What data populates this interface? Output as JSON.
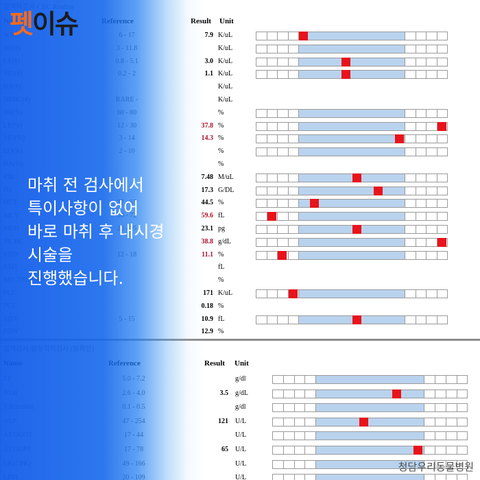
{
  "brand": {
    "logo_part1": "펫",
    "logo_part2": "이슈"
  },
  "caption": {
    "lines": [
      "마취 전 검사에서",
      "특이사항이 없어",
      "바로 마취 후 내시경",
      "시술을",
      "진행했습니다."
    ]
  },
  "watermark": "청담우리동물병원",
  "colors": {
    "marker": "#e8131b",
    "normal_band": "#b9d3ee",
    "abnormal_text": "#b0102a",
    "overlay_blue": "#1668ec",
    "logo_orange": "#f46a1e"
  },
  "cbc": {
    "title": "혈액학검사-CBC Routine",
    "headers": {
      "name": "Name",
      "reference": "Reference",
      "result": "Result",
      "unit": "Unit"
    },
    "rows": [
      {
        "name": "WBC",
        "ref": "6 - 17",
        "result": "7.9",
        "unit": "K/uL",
        "abnormal": false,
        "marker_pos": 4,
        "show_bar": true
      },
      {
        "name": "NE(#)",
        "ref": "3 - 11.8",
        "result": "",
        "unit": "K/uL",
        "abnormal": false,
        "marker_pos": null,
        "show_bar": true
      },
      {
        "name": "LY(#)",
        "ref": "0.8 - 5.1",
        "result": "3.0",
        "unit": "K/uL",
        "abnormal": false,
        "marker_pos": 8,
        "show_bar": true
      },
      {
        "name": "MO(#)",
        "ref": "0.2 - 2",
        "result": "1.1",
        "unit": "K/uL",
        "abnormal": false,
        "marker_pos": 8,
        "show_bar": true
      },
      {
        "name": "BA(#)",
        "ref": "",
        "result": "",
        "unit": "K/uL",
        "abnormal": false,
        "marker_pos": null,
        "show_bar": false
      },
      {
        "name": "NRBC(#)",
        "ref": "RARE -",
        "result": "",
        "unit": "K/uL",
        "abnormal": false,
        "marker_pos": null,
        "show_bar": false
      },
      {
        "name": "NE(%)",
        "ref": "60 - 80",
        "result": "",
        "unit": "%",
        "abnormal": false,
        "marker_pos": null,
        "show_bar": true
      },
      {
        "name": "LY(%)",
        "ref": "12 - 30",
        "result": "37.8",
        "unit": "%",
        "abnormal": true,
        "marker_pos": 17,
        "show_bar": true
      },
      {
        "name": "MO(%)",
        "ref": "3 - 14",
        "result": "14.3",
        "unit": "%",
        "abnormal": true,
        "marker_pos": 13,
        "show_bar": true
      },
      {
        "name": "EO(%)",
        "ref": "2 - 10",
        "result": "",
        "unit": "%",
        "abnormal": false,
        "marker_pos": null,
        "show_bar": true
      },
      {
        "name": "BA(%)",
        "ref": "",
        "result": "",
        "unit": "%",
        "abnormal": false,
        "marker_pos": null,
        "show_bar": false
      },
      {
        "name": "RBC",
        "ref": "",
        "result": "7.48",
        "unit": "M/uL",
        "abnormal": false,
        "marker_pos": 9,
        "show_bar": true
      },
      {
        "name": "Hb",
        "ref": "",
        "result": "17.3",
        "unit": "G/DL",
        "abnormal": false,
        "marker_pos": 11,
        "show_bar": true
      },
      {
        "name": "HCT",
        "ref": "37 - 55",
        "result": "44.5",
        "unit": "%",
        "abnormal": false,
        "marker_pos": 5,
        "show_bar": true
      },
      {
        "name": "MCV",
        "ref": "60 - 72",
        "result": "59.6",
        "unit": "fL",
        "abnormal": true,
        "marker_pos": 1,
        "show_bar": true
      },
      {
        "name": "MCH",
        "ref": "20 - 25",
        "result": "23.1",
        "unit": "pg",
        "abnormal": false,
        "marker_pos": 9,
        "show_bar": true
      },
      {
        "name": "MCHC",
        "ref": "",
        "result": "38.8",
        "unit": "g/dL",
        "abnormal": true,
        "marker_pos": 17,
        "show_bar": true
      },
      {
        "name": "RDW",
        "ref": "12 - 18",
        "result": "11.1",
        "unit": "%",
        "abnormal": true,
        "marker_pos": 2,
        "show_bar": true
      },
      {
        "name": "RSD",
        "ref": "",
        "result": "",
        "unit": "fL",
        "abnormal": false,
        "marker_pos": null,
        "show_bar": false
      },
      {
        "name": "RECTICS(%)",
        "ref": "",
        "result": "",
        "unit": "%",
        "abnormal": false,
        "marker_pos": null,
        "show_bar": false
      },
      {
        "name": "PLT",
        "ref": "",
        "result": "171",
        "unit": "K/uL",
        "abnormal": false,
        "marker_pos": 3,
        "show_bar": true
      },
      {
        "name": "PCT",
        "ref": "",
        "result": "0.18",
        "unit": "%",
        "abnormal": false,
        "marker_pos": null,
        "show_bar": false
      },
      {
        "name": "MPV",
        "ref": "5 - 15",
        "result": "10.9",
        "unit": "fL",
        "abnormal": false,
        "marker_pos": 9,
        "show_bar": true
      },
      {
        "name": "PDW",
        "ref": "",
        "result": "12.9",
        "unit": "%",
        "abnormal": false,
        "marker_pos": null,
        "show_bar": false
      }
    ]
  },
  "chem": {
    "title": "혈액검사-혈청화학검사 (항목당)",
    "headers": {
      "name": "Name",
      "reference": "Reference",
      "result": "Result",
      "unit": "Unit"
    },
    "rows": [
      {
        "name": "TP",
        "ref": "5.0 - 7.2",
        "result": "",
        "unit": "g/dl",
        "abnormal": false,
        "marker_pos": null,
        "show_bar": true
      },
      {
        "name": "ALB",
        "ref": "2.6 - 4.0",
        "result": "3.5",
        "unit": "g/dL",
        "abnormal": false,
        "marker_pos": 11,
        "show_bar": true
      },
      {
        "name": "T.Bilirubin",
        "ref": "0.1 - 0.5",
        "result": "",
        "unit": "g/dl",
        "abnormal": false,
        "marker_pos": null,
        "show_bar": true
      },
      {
        "name": "ALP",
        "ref": "47 - 254",
        "result": "121",
        "unit": "U/L",
        "abnormal": false,
        "marker_pos": 8,
        "show_bar": true
      },
      {
        "name": "AST/GOT",
        "ref": "17 - 44",
        "result": "",
        "unit": "U/L",
        "abnormal": false,
        "marker_pos": null,
        "show_bar": true
      },
      {
        "name": "ALT/GPT",
        "ref": "17 - 78",
        "result": "65",
        "unit": "U/L",
        "abnormal": false,
        "marker_pos": 13,
        "show_bar": true
      },
      {
        "name": "CK(CPK)",
        "ref": "49 - 166",
        "result": "",
        "unit": "U/L",
        "abnormal": false,
        "marker_pos": null,
        "show_bar": true
      },
      {
        "name": "LDH",
        "ref": "20 - 109",
        "result": "",
        "unit": "U/L",
        "abnormal": false,
        "marker_pos": null,
        "show_bar": true
      }
    ]
  }
}
